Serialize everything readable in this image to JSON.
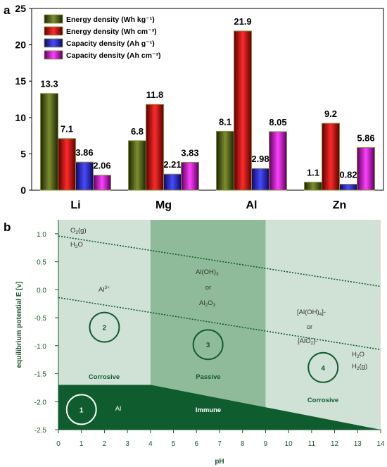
{
  "panel_a_label": "a",
  "panel_b_label": "b",
  "chart_data": [
    {
      "type": "bar",
      "categories": [
        "Li",
        "Mg",
        "Al",
        "Zn"
      ],
      "series": [
        {
          "name": "Energy density (Wh kg⁻¹)",
          "values": [
            13.3,
            6.8,
            8.1,
            1.1
          ],
          "labels": [
            "13.3",
            "6.8",
            "8.1",
            "1.1"
          ],
          "color": "#556b1f"
        },
        {
          "name": "Energy density (Wh cm⁻³)",
          "values": [
            7.1,
            11.8,
            21.9,
            9.2
          ],
          "labels": [
            "7.1",
            "11.8",
            "21.9",
            "9.2"
          ],
          "color": "#ee1c1c"
        },
        {
          "name": "Capacity density (Ah g⁻¹)",
          "values": [
            3.86,
            2.21,
            2.98,
            0.82
          ],
          "labels": [
            "3.86",
            "2.21",
            "2.98",
            "0.82"
          ],
          "color": "#3a3ae8"
        },
        {
          "name": "Capacity density (Ah cm⁻³)",
          "values": [
            2.06,
            3.83,
            8.05,
            5.86
          ],
          "labels": [
            "2.06",
            "3.83",
            "8.05",
            "5.86"
          ],
          "color": "#e020e0"
        }
      ],
      "ylim": [
        0,
        25
      ],
      "yticks": [
        "0",
        "5",
        "10",
        "15",
        "20",
        "25"
      ],
      "legend": "top-left"
    },
    {
      "type": "area",
      "xlabel": "pH",
      "ylabel": "equilibrium potential E [v]",
      "xlim": [
        0,
        14
      ],
      "ylim": [
        -2.5,
        1.25
      ],
      "xticks": [
        "0",
        "1",
        "2",
        "3",
        "4",
        "5",
        "6",
        "7",
        "8",
        "9",
        "10",
        "11",
        "12",
        "13",
        "14"
      ],
      "yticks": [
        {
          "v": 1.0,
          "t": "1.0"
        },
        {
          "v": 0.5,
          "t": "0.5"
        },
        {
          "v": 0.0,
          "t": "0.0"
        },
        {
          "v": -0.5,
          "t": "-0.5"
        },
        {
          "v": -1.0,
          "t": "-1.0"
        },
        {
          "v": -1.5,
          "t": "-1.5"
        },
        {
          "v": -2.0,
          "t": "-2.0"
        },
        {
          "v": -2.5,
          "t": "-2.5"
        }
      ],
      "passive_region_ph": [
        4,
        9
      ],
      "immune_boundary": [
        {
          "x": 0,
          "y": -1.7
        },
        {
          "x": 4,
          "y": -1.7
        },
        {
          "x": 14,
          "y": -2.5
        }
      ],
      "water_line_upper": [
        {
          "x": 0,
          "y": 0.96
        },
        {
          "x": 14,
          "y": 0.06
        }
      ],
      "water_line_lower": [
        {
          "x": 0,
          "y": -0.14
        },
        {
          "x": 14,
          "y": -1.07
        }
      ],
      "colors": {
        "light": "#cfe2d5",
        "mid": "#8fbb9b",
        "dark": "#0f5c2e",
        "text": "#1a5a2e"
      },
      "labels": {
        "o2_main": "O",
        "o2_sub": "2",
        "o2_tail": "(g)",
        "h2o_a_main": "H",
        "h2o_a_sub": "2",
        "h2o_a_tail": "O",
        "al3_main": "Al",
        "al3_sup": "3+",
        "aloh3_main": "Al(OH)",
        "aloh3_sub": "3",
        "or1": "or",
        "al2o3_a": "Al",
        "al2o3_sub1": "2",
        "al2o3_b": "O",
        "al2o3_sub2": "3",
        "aloh4_main": "[Al(OH)",
        "aloh4_sub": "4",
        "aloh4_tail": "]-",
        "or2": "or",
        "alo2_main": "[AlO",
        "alo2_sub": "2",
        "alo2_tail": "]-",
        "h2o_b_main": "H",
        "h2o_b_sub": "2",
        "h2o_b_tail": "O",
        "h2_main": "H",
        "h2_sub": "2",
        "h2_tail": "(g)",
        "corrosive_left": "Corrosive",
        "passive": "Passive",
        "corrosive_right": "Corrosive",
        "immune": "Immune",
        "al": "Al"
      },
      "circles": [
        {
          "label": "1",
          "x": 1.0,
          "y": -2.14
        },
        {
          "label": "2",
          "x": 2.0,
          "y": -0.67
        },
        {
          "label": "3",
          "x": 6.5,
          "y": -0.98
        },
        {
          "label": "4",
          "x": 11.5,
          "y": -1.39
        }
      ]
    }
  ]
}
